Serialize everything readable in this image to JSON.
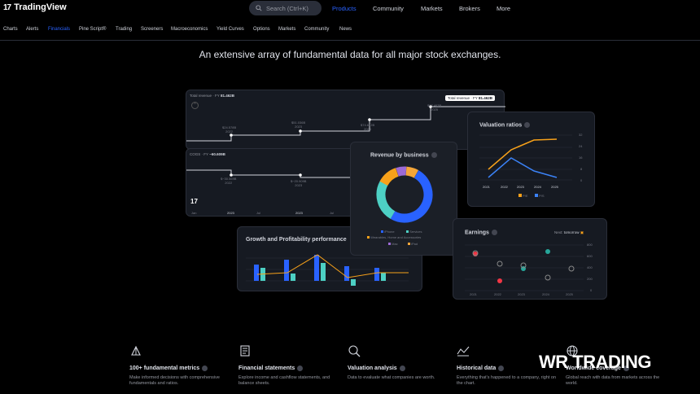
{
  "brand": {
    "name": "TradingView",
    "mark": "17"
  },
  "search": {
    "placeholder": "Search (Ctrl+K)"
  },
  "main_nav": [
    {
      "label": "Products",
      "active": true
    },
    {
      "label": "Community",
      "active": false
    },
    {
      "label": "Markets",
      "active": false
    },
    {
      "label": "Brokers",
      "active": false
    },
    {
      "label": "More",
      "active": false
    }
  ],
  "sub_nav": [
    "Charts",
    "Alerts",
    "Financials",
    "Pine Script®",
    "Trading",
    "Screeners",
    "Macroeconomics",
    "Yield Curves",
    "Options",
    "Markets",
    "Community",
    "News"
  ],
  "sub_nav_active": "Financials",
  "headline": "An extensive array of fundamental data for all major stock exchanges.",
  "revenue_card": {
    "label": "Total revenue · FY",
    "value": "81.462B",
    "tag_label": "Total revenue · FY",
    "tag_value": "81.462B",
    "points": [
      {
        "value": "$24.578B",
        "year": "2022"
      },
      {
        "value": "$51.036B",
        "year": "2023"
      },
      {
        "value": "$74.612B",
        "year": "2024"
      },
      {
        "value": "$97.463B",
        "year": "2025"
      }
    ]
  },
  "cogs_card": {
    "label": "COGS · FY",
    "value": "−60.609B",
    "points": [
      {
        "value": "$−30.569B",
        "year": "2022"
      },
      {
        "value": "$−20.909B",
        "year": "2023"
      }
    ],
    "axis": [
      "Jan",
      "2023",
      "Jul",
      "2023",
      "Jul"
    ]
  },
  "valuation_card": {
    "title": "Valuation ratios",
    "years": [
      "2021",
      "2022",
      "2023",
      "2024",
      "2025"
    ],
    "y_ticks": [
      "32",
      "24",
      "16",
      "8",
      "0"
    ],
    "legend": [
      "P/E",
      "P/S"
    ],
    "colors": {
      "pe": "#f7a11a",
      "ps": "#3b82f6"
    }
  },
  "revenue_business": {
    "title": "Revenue by business",
    "legend": [
      "iPhone",
      "Services",
      "Wearables, Home and Accessories",
      "Mac",
      "iPad"
    ],
    "colors": [
      "#2962ff",
      "#4dd0c4",
      "#f7a11a",
      "#9c6ad6",
      "#f4a63a"
    ]
  },
  "growth_card": {
    "title": "Growth and Profitability performance"
  },
  "earnings_card": {
    "title": "Earnings",
    "next_label": "Next:",
    "next_value": "tomorrow",
    "years": [
      "2021",
      "2022",
      "2023",
      "2024",
      "2025"
    ],
    "y_ticks": [
      "800",
      "600",
      "400",
      "200",
      "0"
    ]
  },
  "features": [
    {
      "icon": "pie-chart-icon",
      "title": "100+ fundamental metrics",
      "desc": "Make informed decisions with comprehensive fundamentals and ratios."
    },
    {
      "icon": "document-icon",
      "title": "Financial statements",
      "desc": "Explore income and cashflow statements, and balance sheets."
    },
    {
      "icon": "magnifier-icon",
      "title": "Valuation analysis",
      "desc": "Data to evaluate what companies are worth."
    },
    {
      "icon": "timeline-icon",
      "title": "Historical data",
      "desc": "Everything that's happened to a company, right on the chart."
    },
    {
      "icon": "globe-icon",
      "title": "Worldwide coverage",
      "desc": "Global reach with data from markets across the world."
    }
  ],
  "watermark": "WR TRADING"
}
